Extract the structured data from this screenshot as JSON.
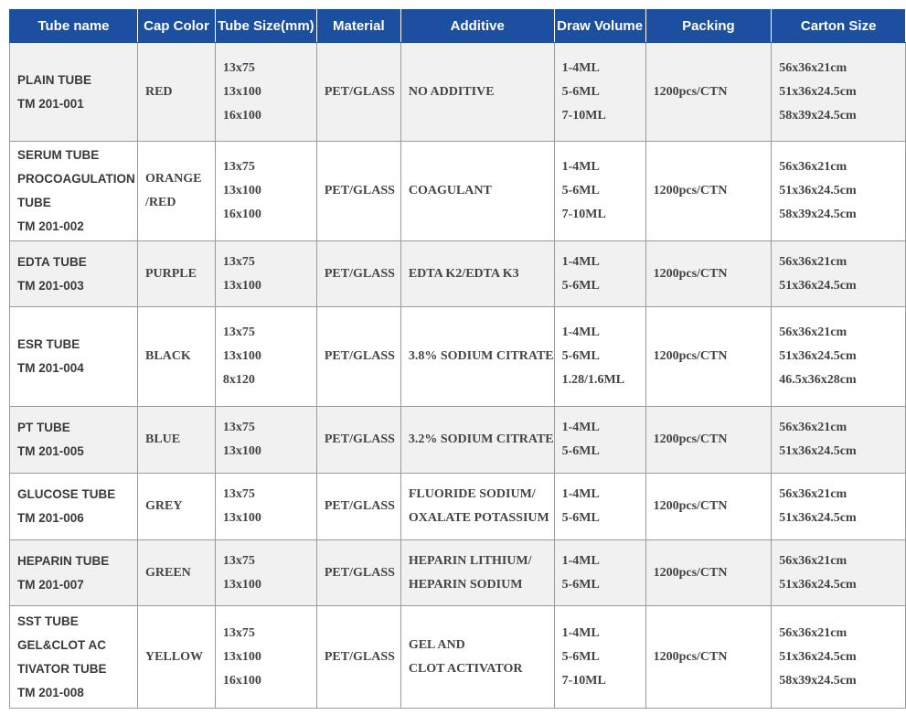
{
  "table": {
    "headers": [
      "Tube name",
      "Cap Color",
      "Tube Size(mm)",
      "Material",
      "Additive",
      "Draw Volume",
      "Packing",
      "Carton Size"
    ],
    "rows": [
      [
        [
          "PLAIN TUBE",
          "TM 201-001"
        ],
        [
          "RED"
        ],
        [
          "13x75",
          "13x100",
          "16x100"
        ],
        [
          "PET/GLASS"
        ],
        [
          "NO ADDITIVE"
        ],
        [
          "1-4ML",
          "5-6ML",
          "7-10ML"
        ],
        [
          "1200pcs/CTN"
        ],
        [
          "56x36x21cm",
          "51x36x24.5cm",
          "58x39x24.5cm"
        ]
      ],
      [
        [
          "SERUM TUBE",
          "PROCOAGULATION",
          "TUBE",
          "TM 201-002"
        ],
        [
          "ORANGE",
          "/RED"
        ],
        [
          "13x75",
          "13x100",
          "16x100"
        ],
        [
          "PET/GLASS"
        ],
        [
          "COAGULANT"
        ],
        [
          "1-4ML",
          "5-6ML",
          "7-10ML"
        ],
        [
          "1200pcs/CTN"
        ],
        [
          "56x36x21cm",
          "51x36x24.5cm",
          "58x39x24.5cm"
        ]
      ],
      [
        [
          "EDTA TUBE",
          "TM 201-003"
        ],
        [
          "PURPLE"
        ],
        [
          "13x75",
          "13x100"
        ],
        [
          "PET/GLASS"
        ],
        [
          "EDTA K2/EDTA K3"
        ],
        [
          "1-4ML",
          "5-6ML"
        ],
        [
          "1200pcs/CTN"
        ],
        [
          "56x36x21cm",
          "51x36x24.5cm"
        ]
      ],
      [
        [
          "ESR TUBE",
          "TM 201-004"
        ],
        [
          "BLACK"
        ],
        [
          "13x75",
          "13x100",
          "8x120"
        ],
        [
          "PET/GLASS"
        ],
        [
          "3.8% SODIUM CITRATE"
        ],
        [
          "1-4ML",
          "5-6ML",
          "1.28/1.6ML"
        ],
        [
          "1200pcs/CTN"
        ],
        [
          "56x36x21cm",
          "51x36x24.5cm",
          "46.5x36x28cm"
        ]
      ],
      [
        [
          "PT TUBE",
          "TM 201-005"
        ],
        [
          "BLUE"
        ],
        [
          "13x75",
          "13x100"
        ],
        [
          "PET/GLASS"
        ],
        [
          "3.2% SODIUM CITRATE"
        ],
        [
          "1-4ML",
          "5-6ML"
        ],
        [
          "1200pcs/CTN"
        ],
        [
          "56x36x21cm",
          "51x36x24.5cm"
        ]
      ],
      [
        [
          "GLUCOSE TUBE",
          "TM 201-006"
        ],
        [
          "GREY"
        ],
        [
          "13x75",
          "13x100"
        ],
        [
          "PET/GLASS"
        ],
        [
          "FLUORIDE SODIUM/",
          "OXALATE POTASSIUM"
        ],
        [
          "1-4ML",
          "5-6ML"
        ],
        [
          "1200pcs/CTN"
        ],
        [
          "56x36x21cm",
          "51x36x24.5cm"
        ]
      ],
      [
        [
          "HEPARIN TUBE",
          "TM 201-007"
        ],
        [
          "GREEN"
        ],
        [
          "13x75",
          "13x100"
        ],
        [
          "PET/GLASS"
        ],
        [
          "HEPARIN LITHIUM/",
          "HEPARIN SODIUM"
        ],
        [
          "1-4ML",
          "5-6ML"
        ],
        [
          "1200pcs/CTN"
        ],
        [
          "56x36x21cm",
          "51x36x24.5cm"
        ]
      ],
      [
        [
          "SST TUBE",
          "GEL&CLOT AC",
          "TIVATOR TUBE",
          "TM 201-008"
        ],
        [
          "YELLOW"
        ],
        [
          "13x75",
          "13x100",
          "16x100"
        ],
        [
          "PET/GLASS"
        ],
        [
          "GEL AND",
          "CLOT ACTIVATOR"
        ],
        [
          "1-4ML",
          "5-6ML",
          "7-10ML"
        ],
        [
          "1200pcs/CTN"
        ],
        [
          "56x36x21cm",
          "51x36x24.5cm",
          "58x39x24.5cm"
        ]
      ]
    ]
  }
}
